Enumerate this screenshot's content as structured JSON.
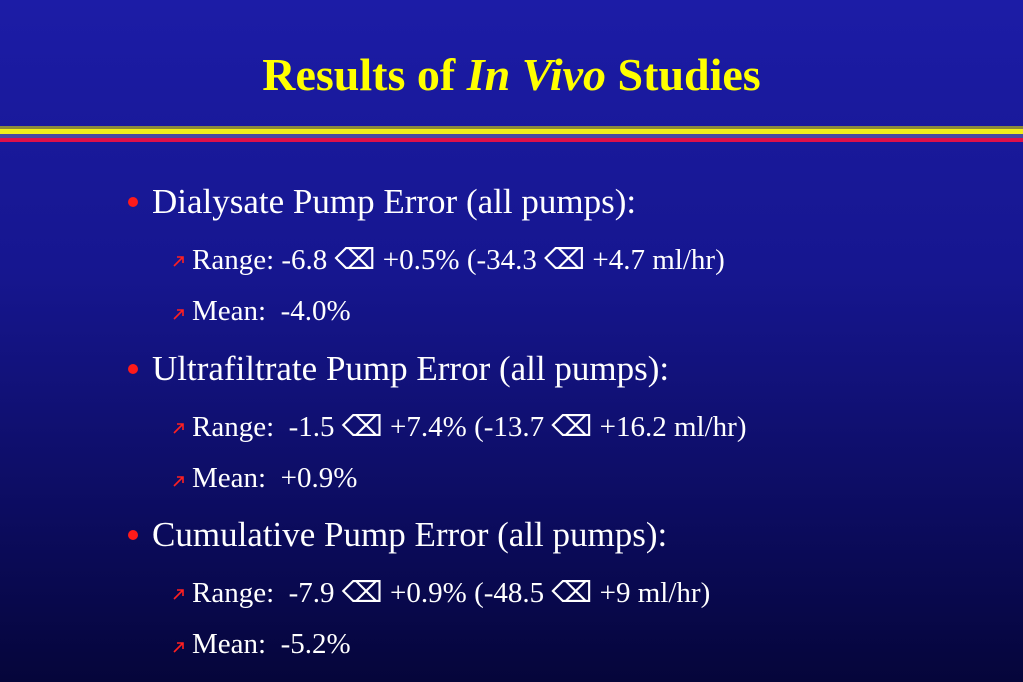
{
  "slide": {
    "title": {
      "before": "Results of ",
      "italic": "In Vivo",
      "after": " Studies"
    },
    "bullets": [
      {
        "text": "Dialysate Pump Error (all pumps):",
        "subs": [
          "Range: -6.8 ⌫ +0.5% (-34.3 ⌫ +4.7 ml/hr)",
          "Mean:  -4.0%"
        ]
      },
      {
        "text": "Ultrafiltrate Pump Error (all pumps):",
        "subs": [
          "Range:  -1.5 ⌫ +7.4% (-13.7 ⌫ +16.2 ml/hr)",
          "Mean:  +0.9%"
        ]
      },
      {
        "text": "Cumulative Pump Error (all pumps):",
        "subs": [
          "Range:  -7.9 ⌫ +0.9% (-48.5 ⌫ +9 ml/hr)",
          "Mean:  -5.2%"
        ]
      }
    ]
  }
}
